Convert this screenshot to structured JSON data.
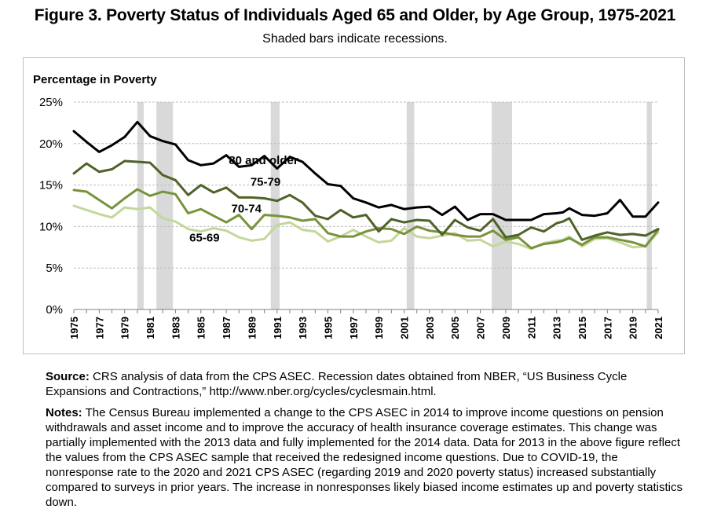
{
  "figure": {
    "title": "Figure 3. Poverty Status of Individuals Aged 65 and Older, by Age Group, 1975-2021",
    "subtitle": "Shaded bars indicate recessions."
  },
  "source": {
    "label": "Source:",
    "text": "CRS analysis of data from the CPS ASEC. Recession dates obtained from NBER, “US Business Cycle Expansions and Contractions,” http://www.nber.org/cycles/cyclesmain.html."
  },
  "notes": {
    "label": "Notes:",
    "text": "The Census Bureau implemented a change to the CPS ASEC in 2014 to improve income questions on pension withdrawals and asset income and to improve the accuracy of health insurance coverage estimates. This change was partially implemented with the 2013 data and fully implemented for the 2014 data. Data for 2013 in the above figure reflect the values from the CPS ASEC sample that received the redesigned income questions. Due to COVID-19, the nonresponse rate to the 2020 and 2021 CPS ASEC (regarding 2019 and 2020 poverty status) increased substantially compared to surveys in prior years. The increase in nonresponses likely biased income estimates up and poverty statistics down."
  },
  "chart_data": {
    "type": "line",
    "ylabel": "Percentage in Poverty",
    "ylim": [
      0,
      25
    ],
    "yticks": [
      0,
      5,
      10,
      15,
      20,
      25
    ],
    "ytick_labels": [
      "0%",
      "5%",
      "10%",
      "15%",
      "20%",
      "25%"
    ],
    "x": [
      1975,
      1976,
      1977,
      1978,
      1979,
      1980,
      1981,
      1982,
      1983,
      1984,
      1985,
      1986,
      1987,
      1988,
      1989,
      1990,
      1991,
      1992,
      1993,
      1994,
      1995,
      1996,
      1997,
      1998,
      1999,
      2000,
      2001,
      2002,
      2003,
      2004,
      2005,
      2006,
      2007,
      2008,
      2009,
      2010,
      2011,
      2012,
      2013,
      2013.5,
      2014,
      2015,
      2016,
      2017,
      2018,
      2019,
      2020,
      2021
    ],
    "xtick_labels": [
      "1975",
      "1977",
      "1979",
      "1981",
      "1983",
      "1985",
      "1987",
      "1989",
      "1991",
      "1993",
      "1995",
      "1997",
      "1999",
      "2001",
      "2003",
      "2005",
      "2007",
      "2009",
      "2011",
      "2013",
      "2015",
      "2017",
      "2019",
      "2021"
    ],
    "grid": "horizontal",
    "recessions": [
      [
        1980.0,
        1980.5
      ],
      [
        1981.5,
        1982.8
      ],
      [
        1990.5,
        1991.2
      ],
      [
        2001.2,
        2001.8
      ],
      [
        2007.9,
        2009.5
      ],
      [
        2020.1,
        2020.5
      ]
    ],
    "series": [
      {
        "name": "80 and older",
        "color": "#000000",
        "label": {
          "at": [
            1987.2,
            17.5
          ]
        },
        "values": [
          21.5,
          20.2,
          19.0,
          19.8,
          20.8,
          22.6,
          20.9,
          20.3,
          19.9,
          18.0,
          17.4,
          17.6,
          18.6,
          17.2,
          17.4,
          18.5,
          17.0,
          18.4,
          17.8,
          16.4,
          15.1,
          14.9,
          13.4,
          12.9,
          12.3,
          12.6,
          12.1,
          12.3,
          12.4,
          11.4,
          12.4,
          10.8,
          11.5,
          11.5,
          10.8,
          10.8,
          10.8,
          11.5,
          11.6,
          11.7,
          12.2,
          11.4,
          11.3,
          11.6,
          13.2,
          11.2,
          11.2,
          12.9
        ]
      },
      {
        "name": "75-79",
        "color": "#4f6228",
        "label": {
          "at": [
            1988.9,
            14.9
          ]
        },
        "values": [
          16.4,
          17.6,
          16.6,
          16.9,
          17.9,
          17.8,
          17.7,
          16.2,
          15.6,
          13.8,
          15.0,
          14.1,
          14.7,
          13.5,
          13.5,
          13.4,
          13.1,
          13.8,
          12.9,
          11.3,
          10.9,
          12.0,
          11.1,
          11.4,
          9.4,
          10.9,
          10.5,
          10.8,
          10.7,
          9.0,
          10.8,
          9.9,
          9.5,
          10.9,
          8.7,
          9.0,
          9.9,
          9.4,
          10.4,
          10.6,
          11.0,
          8.4,
          8.9,
          9.3,
          9.0,
          9.1,
          8.9,
          9.7
        ]
      },
      {
        "name": "70-74",
        "color": "#77933c",
        "label": {
          "at": [
            1987.4,
            11.7
          ]
        },
        "values": [
          14.4,
          14.2,
          13.2,
          12.2,
          13.4,
          14.5,
          13.7,
          14.2,
          13.9,
          11.6,
          12.1,
          11.3,
          10.5,
          11.4,
          9.7,
          11.4,
          11.3,
          11.1,
          10.7,
          10.9,
          9.2,
          8.8,
          8.8,
          9.4,
          9.8,
          9.7,
          9.1,
          10.0,
          9.5,
          9.3,
          9.0,
          8.8,
          8.8,
          9.5,
          8.4,
          8.7,
          7.4,
          7.9,
          8.1,
          8.3,
          8.6,
          7.8,
          8.7,
          8.7,
          8.4,
          8.1,
          7.6,
          9.6
        ]
      },
      {
        "name": "65-69",
        "color": "#c4d79b",
        "label": {
          "at": [
            1984.1,
            8.2
          ]
        },
        "values": [
          12.5,
          12.0,
          11.5,
          11.1,
          12.3,
          12.1,
          12.3,
          11.0,
          10.6,
          9.7,
          9.4,
          9.8,
          9.5,
          8.7,
          8.3,
          8.5,
          10.2,
          10.5,
          9.6,
          9.4,
          8.2,
          8.8,
          9.6,
          8.8,
          8.1,
          8.3,
          9.8,
          8.8,
          8.6,
          8.9,
          9.2,
          8.3,
          8.4,
          7.6,
          8.2,
          7.9,
          7.3,
          8.0,
          8.3,
          8.4,
          8.8,
          7.6,
          8.5,
          8.6,
          8.1,
          7.5,
          7.6,
          9.3
        ]
      }
    ]
  }
}
